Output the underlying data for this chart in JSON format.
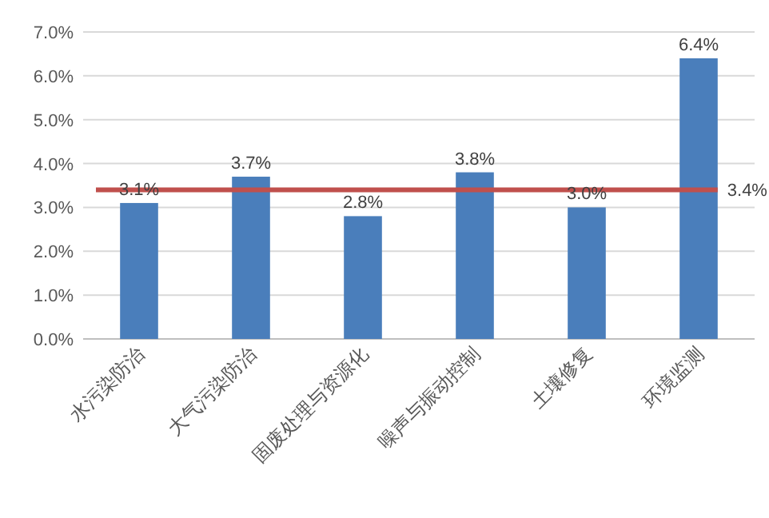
{
  "chart_data": {
    "type": "bar",
    "categories": [
      "水污染防治",
      "大气污染防治",
      "固废处理与资源化",
      "噪声与振动控制",
      "土壤修复",
      "环境监测"
    ],
    "values": [
      3.1,
      3.7,
      2.8,
      3.8,
      3.0,
      6.4
    ],
    "value_labels": [
      "3.1%",
      "3.7%",
      "2.8%",
      "3.8%",
      "3.0%",
      "6.4%"
    ],
    "color": "#4a7ebb",
    "ylim": [
      0,
      7
    ],
    "yticks": [
      {
        "value": 0,
        "label": "0.0%"
      },
      {
        "value": 1,
        "label": "1.0%"
      },
      {
        "value": 2,
        "label": "2.0%"
      },
      {
        "value": 3,
        "label": "3.0%"
      },
      {
        "value": 4,
        "label": "4.0%"
      },
      {
        "value": 5,
        "label": "5.0%"
      },
      {
        "value": 6,
        "label": "6.0%"
      },
      {
        "value": 7,
        "label": "7.0%"
      }
    ],
    "grid": "y",
    "ref_lines": [
      {
        "axis": "y",
        "value": 3.4,
        "label": "3.4%",
        "color": "#c0504d"
      }
    ]
  }
}
